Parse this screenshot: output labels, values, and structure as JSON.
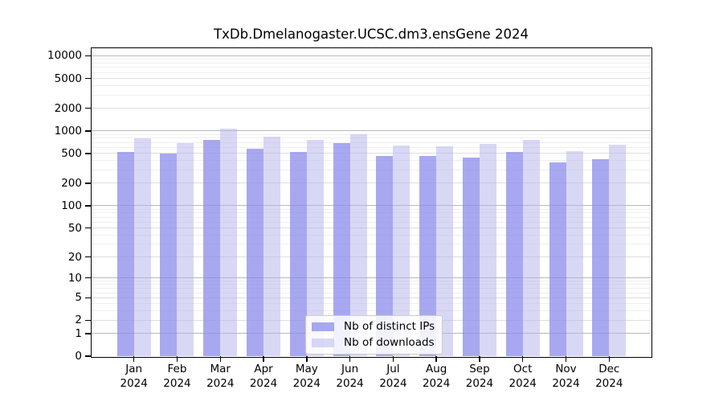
{
  "chart_data": {
    "type": "bar",
    "title": "TxDb.Dmelanogaster.UCSC.dm3.ensGene 2024",
    "xlabel": "",
    "ylabel": "",
    "y_scale": "log1p",
    "ylim": [
      0,
      12600
    ],
    "y_ticks": [
      0,
      1,
      2,
      5,
      10,
      20,
      50,
      100,
      200,
      500,
      1000,
      2000,
      5000,
      10000
    ],
    "grid": true,
    "legend_position": "lower center",
    "categories": [
      "Jan 2024",
      "Feb 2024",
      "Mar 2024",
      "Apr 2024",
      "May 2024",
      "Jun 2024",
      "Jul 2024",
      "Aug 2024",
      "Sep 2024",
      "Oct 2024",
      "Nov 2024",
      "Dec 2024"
    ],
    "series": [
      {
        "name": "Nb of distinct IPs",
        "color": "rgba(139,139,235,0.75)",
        "values": [
          530,
          500,
          765,
          585,
          528,
          688,
          465,
          460,
          445,
          528,
          380,
          418
        ]
      },
      {
        "name": "Nb of downloads",
        "color": "rgba(177,177,235,0.5)",
        "values": [
          788,
          688,
          1070,
          830,
          768,
          895,
          635,
          625,
          678,
          752,
          538,
          650
        ]
      }
    ],
    "grid_colors": {
      "major": "#b9b9b9",
      "mid": "#dedede",
      "minor": "#efefef"
    }
  }
}
